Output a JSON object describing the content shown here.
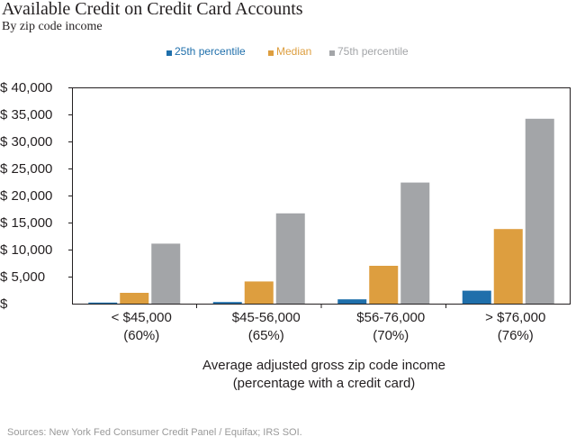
{
  "title": "Available Credit on Credit Card Accounts",
  "subtitle": "By zip code income",
  "legend": [
    {
      "label": "25th percentile",
      "color": "#1f6fab"
    },
    {
      "label": "Median",
      "color": "#dd9e3f"
    },
    {
      "label": "75th percentile",
      "color": "#a3a5a8"
    }
  ],
  "source": "Sources:  New York Fed Consumer Credit Panel / Equifax; IRS SOI.",
  "chart_data": {
    "type": "bar",
    "title": "Available Credit on Credit Card Accounts",
    "subtitle": "By zip code income",
    "categories": [
      [
        "< $45,000",
        "(60%)"
      ],
      [
        "$45-56,000",
        "(65%)"
      ],
      [
        "$56-76,000",
        "(70%)"
      ],
      [
        "> $76,000",
        "(76%)"
      ]
    ],
    "series": [
      {
        "name": "25th percentile",
        "color": "#1f6fab",
        "values": [
          200,
          300,
          800,
          2400
        ]
      },
      {
        "name": "Median",
        "color": "#dd9e3f",
        "values": [
          2000,
          4100,
          7000,
          13800
        ]
      },
      {
        "name": "75th percentile",
        "color": "#a3a5a8",
        "values": [
          11100,
          16700,
          22400,
          34200
        ]
      }
    ],
    "xlabel": [
      "Average adjusted gross zip code income",
      "(percentage with a credit card)"
    ],
    "ylabel": "",
    "ylim": [
      0,
      40000
    ],
    "yticks": [
      0,
      5000,
      10000,
      15000,
      20000,
      25000,
      30000,
      35000,
      40000
    ],
    "ytick_labels": [
      "$",
      "$ 5,000",
      "$ 10,000",
      "$ 15,000",
      "$ 20,000",
      "$ 25,000",
      "$ 30,000",
      "$ 35,000",
      "$ 40,000"
    ],
    "grid": false,
    "legend_position": "top"
  }
}
